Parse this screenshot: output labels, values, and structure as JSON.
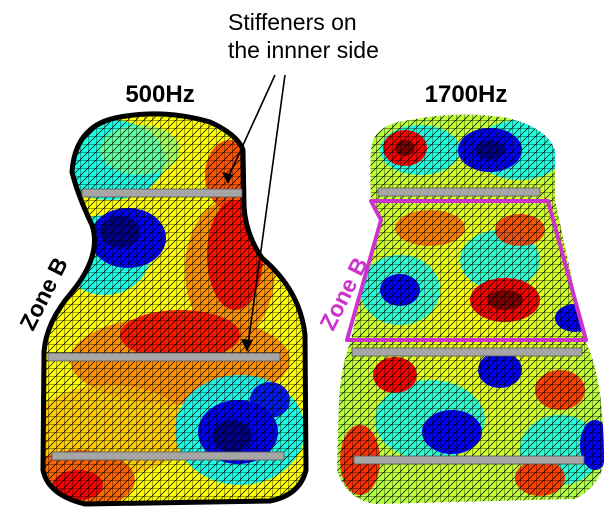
{
  "annotation": {
    "line1": "Stiffeners on",
    "line2": "the innner side"
  },
  "panels": [
    {
      "title": "500Hz",
      "zone_label": "Zone B",
      "zone_color": "#000000",
      "outline_color": "#000000",
      "stiffener_count": 3
    },
    {
      "title": "1700Hz",
      "zone_label": "Zone B",
      "zone_color": "#cc33cc",
      "outline_color": "#ffffff",
      "stiffener_count": 3
    }
  ],
  "colors": {
    "colormap": [
      "#00008f",
      "#0000ff",
      "#00ffff",
      "#ffff00",
      "#ff0000",
      "#800000"
    ],
    "stiffener": "#a6a6a6",
    "mesh_line": "#000000",
    "zone_highlight": "#cc33cc"
  }
}
